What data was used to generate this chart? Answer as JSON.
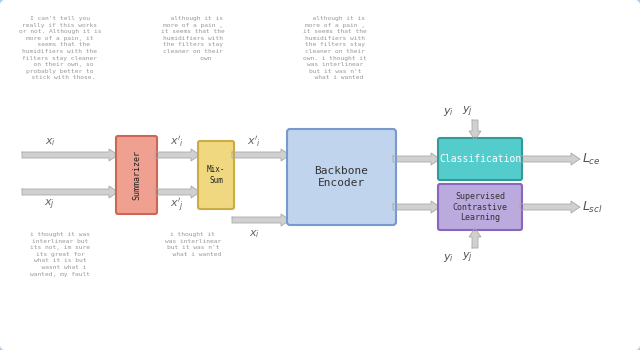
{
  "bg_color": "#ffffff",
  "border_color": "#aaccee",
  "fig_width": 6.4,
  "fig_height": 3.5,
  "text_top_left": "I can't tell you\nreally if this works\nor not. Although it is\nmore of a pain, it\n  seems that the\nhumidifiers with the\nfilters stay cleaner\n  on their own, so\nprobably better to\n  stick with those.",
  "text_top_mid": "  although it is\nmore of a pain ,\nit seems that the\nhumidifiers with\nthe filters stay\ncleaner on their\n       own",
  "text_top_right": "  although it is\nmore of a pain ,\nit seems that the\nhumidifiers with\nthe filters stay\ncleaner on their\nown. i thought it\nwas interlinear\nbut it was n't\n  what i wanted",
  "text_bot_left": "i thought it was\ninterlinear but\nits not, im sure\nits great for\nwhat it is but\n  wasnt what i\nwanted, my fault",
  "text_bot_mid": "i thought it\nwas interlinear\nbut it was n't\n  what i wanted",
  "summarizer_color": "#f0a090",
  "summarizer_edge": "#cc6655",
  "mix_sum_color": "#f0d880",
  "mix_sum_edge": "#ccaa44",
  "backbone_color": "#c0d4ee",
  "backbone_edge": "#7799cc",
  "classification_color": "#55cccc",
  "classification_edge": "#339999",
  "scl_color": "#bbaadd",
  "scl_edge": "#8866bb",
  "arrow_fill": "#d0d0d0",
  "arrow_edge": "#aaaaaa"
}
